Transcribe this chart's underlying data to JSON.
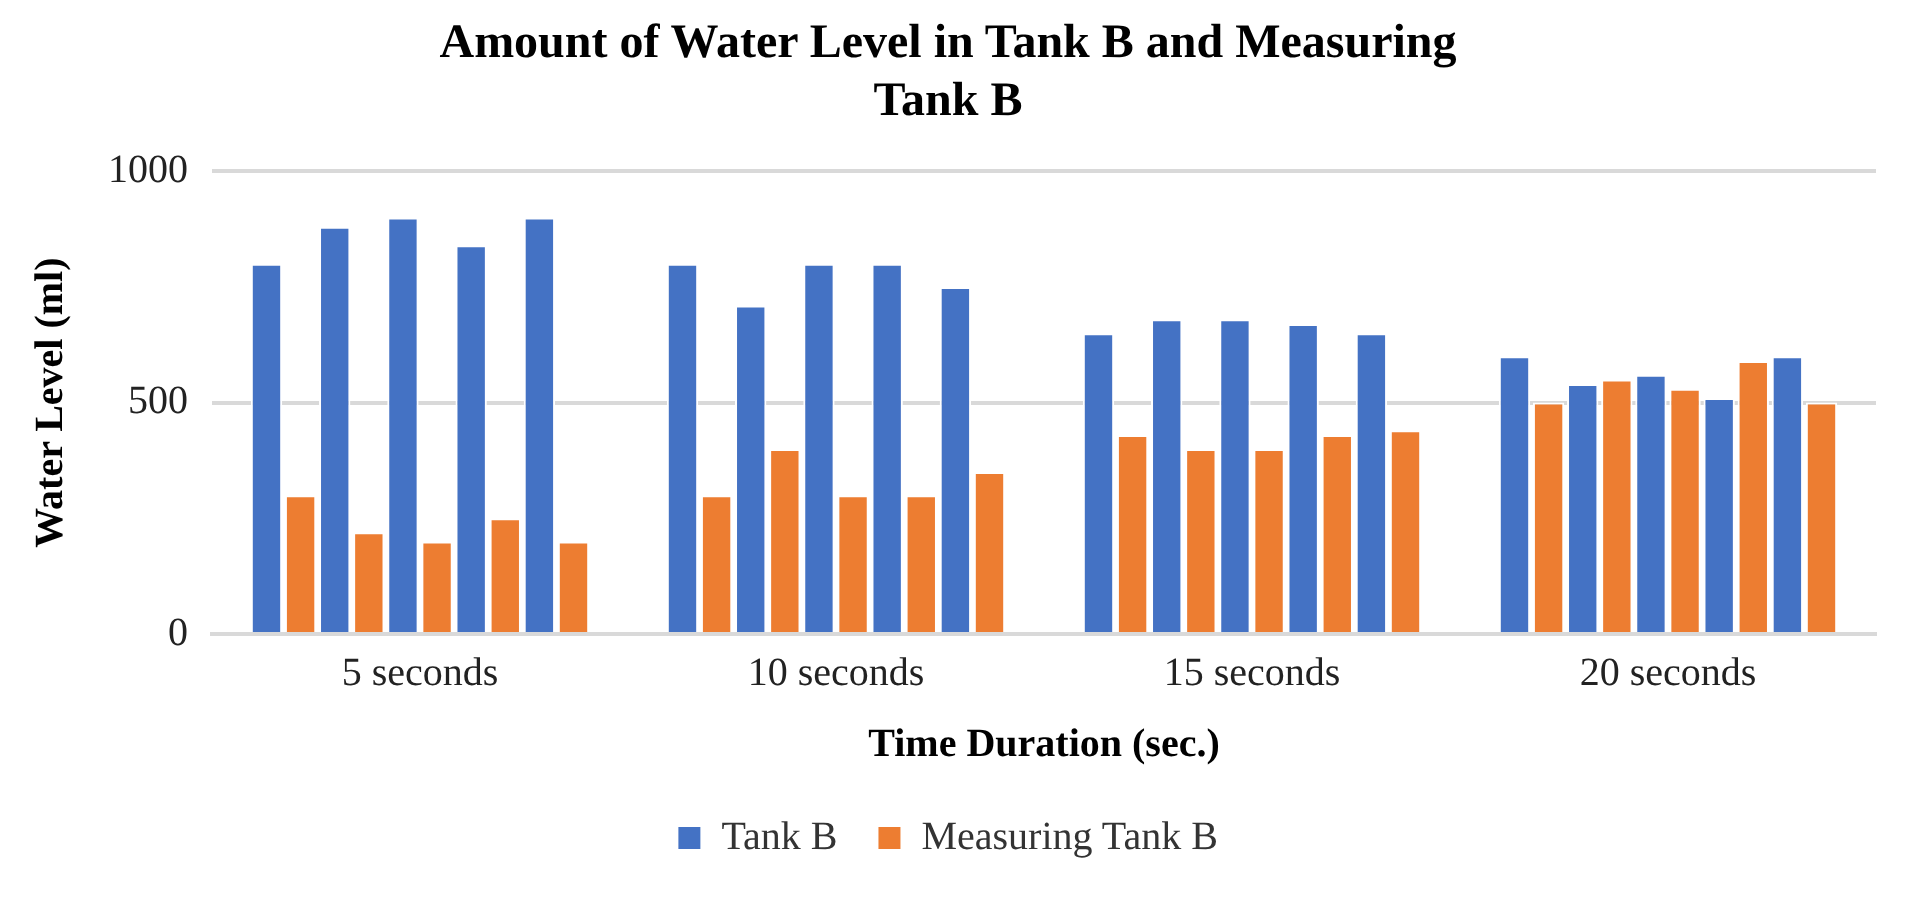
{
  "chart_data": {
    "type": "bar",
    "title": "Amount of Water Level in Tank B and Measuring Tank B",
    "xlabel": "Time Duration (sec.)",
    "ylabel": "Water Level (ml)",
    "categories": [
      "5 seconds",
      "10 seconds",
      "15 seconds",
      "20 seconds"
    ],
    "series": [
      {
        "name": "Tank B",
        "color": "#4472c4",
        "values": [
          800,
          800,
          650,
          600
        ]
      },
      {
        "name": "Measuring Tank B",
        "color": "#ed7d31",
        "values": [
          300,
          300,
          430,
          500
        ]
      },
      {
        "color": "#4472c4",
        "values": [
          880,
          710,
          680,
          540
        ]
      },
      {
        "color": "#ed7d31",
        "values": [
          220,
          400,
          400,
          550
        ]
      },
      {
        "color": "#4472c4",
        "values": [
          900,
          800,
          680,
          560
        ]
      },
      {
        "color": "#ed7d31",
        "values": [
          200,
          300,
          400,
          530
        ]
      },
      {
        "color": "#4472c4",
        "values": [
          840,
          800,
          670,
          510
        ]
      },
      {
        "color": "#ed7d31",
        "values": [
          250,
          300,
          430,
          590
        ]
      },
      {
        "color": "#4472c4",
        "values": [
          900,
          750,
          650,
          600
        ]
      },
      {
        "color": "#ed7d31",
        "values": [
          200,
          350,
          440,
          500
        ]
      }
    ],
    "ylim": [
      0,
      1000
    ],
    "yticks": [
      0,
      500,
      1000
    ],
    "grid": "y",
    "legend": "bottom"
  }
}
